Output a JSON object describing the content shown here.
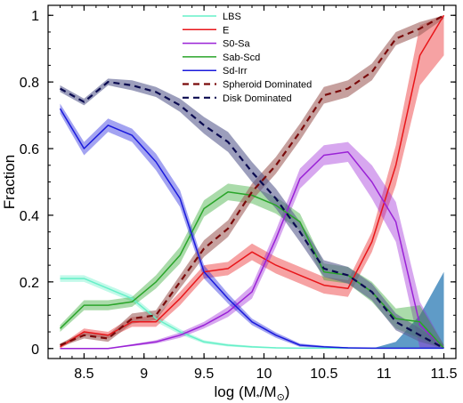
{
  "chart_data": {
    "type": "line",
    "xlabel_parts": [
      "log (M",
      "*",
      "/M",
      "⊙",
      ")"
    ],
    "ylabel": "Fraction",
    "xlim": [
      8.2,
      11.6
    ],
    "ylim": [
      -0.03,
      1.03
    ],
    "xticks": [
      "8.5",
      "9",
      "9.5",
      "10",
      "10.5",
      "11",
      "11.5"
    ],
    "xtick_values": [
      8.5,
      9.0,
      9.5,
      10.0,
      10.5,
      11.0,
      11.5
    ],
    "yticks": [
      "0",
      "0.2",
      "0.4",
      "0.6",
      "0.8",
      "1"
    ],
    "ytick_values": [
      0,
      0.2,
      0.4,
      0.6,
      0.8,
      1.0
    ],
    "legend_position": "top-center",
    "x": [
      8.3,
      8.5,
      8.7,
      8.9,
      9.1,
      9.3,
      9.5,
      9.7,
      9.9,
      10.1,
      10.3,
      10.5,
      10.7,
      10.9,
      11.1,
      11.3,
      11.5
    ],
    "series": [
      {
        "name": "LBS",
        "color": "#66f0c8",
        "dash": false,
        "values": [
          0.21,
          0.21,
          0.18,
          0.15,
          0.09,
          0.05,
          0.02,
          0.01,
          0.005,
          0.002,
          0.001,
          0.001,
          0.001,
          0.001,
          0.001,
          0.001,
          0.001
        ],
        "err": [
          0.01,
          0.01,
          0.01,
          0.01,
          0.01,
          0.008,
          0.005,
          0.004,
          0.003,
          0.002,
          0.001,
          0.001,
          0.001,
          0.001,
          0.001,
          0.001,
          0.001
        ]
      },
      {
        "name": "E",
        "color": "#e8161a",
        "dash": false,
        "values": [
          0.005,
          0.05,
          0.04,
          0.08,
          0.08,
          0.15,
          0.23,
          0.24,
          0.29,
          0.25,
          0.22,
          0.19,
          0.18,
          0.32,
          0.55,
          0.88,
          1.0
        ],
        "err": [
          0.005,
          0.01,
          0.01,
          0.015,
          0.015,
          0.02,
          0.02,
          0.02,
          0.025,
          0.025,
          0.025,
          0.025,
          0.025,
          0.03,
          0.06,
          0.09,
          0.12
        ]
      },
      {
        "name": "S0-Sa",
        "color": "#9a22d6",
        "dash": false,
        "values": [
          0.0,
          0.0,
          0.0,
          0.01,
          0.02,
          0.04,
          0.07,
          0.11,
          0.17,
          0.33,
          0.51,
          0.58,
          0.59,
          0.5,
          0.38,
          0.07,
          0.001
        ],
        "err": [
          0.001,
          0.001,
          0.002,
          0.003,
          0.005,
          0.008,
          0.01,
          0.015,
          0.02,
          0.025,
          0.03,
          0.03,
          0.03,
          0.05,
          0.06,
          0.07,
          0.01
        ]
      },
      {
        "name": "Sab-Scd",
        "color": "#2aa52a",
        "dash": false,
        "values": [
          0.06,
          0.13,
          0.13,
          0.14,
          0.2,
          0.28,
          0.42,
          0.47,
          0.46,
          0.43,
          0.38,
          0.23,
          0.22,
          0.17,
          0.09,
          0.08,
          0.001
        ],
        "err": [
          0.01,
          0.015,
          0.015,
          0.015,
          0.02,
          0.025,
          0.025,
          0.025,
          0.025,
          0.025,
          0.025,
          0.025,
          0.025,
          0.03,
          0.03,
          0.05,
          0.01
        ]
      },
      {
        "name": "Sd-Irr",
        "color": "#1a1adc",
        "dash": false,
        "values": [
          0.72,
          0.6,
          0.67,
          0.64,
          0.56,
          0.45,
          0.23,
          0.15,
          0.08,
          0.04,
          0.01,
          0.005,
          0.002,
          0.001,
          0.001,
          0.001,
          0.001
        ],
        "err": [
          0.015,
          0.02,
          0.02,
          0.02,
          0.025,
          0.025,
          0.02,
          0.015,
          0.01,
          0.008,
          0.005,
          0.003,
          0.002,
          0.001,
          0.001,
          0.001,
          0.001
        ]
      },
      {
        "name": "Spheroid Dominated",
        "color": "#7a0a0a",
        "fill": "#a0605e",
        "dash": true,
        "values": [
          0.01,
          0.04,
          0.03,
          0.09,
          0.1,
          0.2,
          0.3,
          0.36,
          0.47,
          0.55,
          0.65,
          0.76,
          0.78,
          0.83,
          0.93,
          0.96,
          1.0
        ],
        "err": [
          0.005,
          0.01,
          0.01,
          0.015,
          0.015,
          0.02,
          0.025,
          0.025,
          0.025,
          0.025,
          0.025,
          0.025,
          0.025,
          0.025,
          0.02,
          0.02,
          0.01
        ]
      },
      {
        "name": "Disk Dominated",
        "color": "#0a0a50",
        "fill": "#5a5e90",
        "dash": true,
        "values": [
          0.78,
          0.74,
          0.8,
          0.79,
          0.77,
          0.73,
          0.67,
          0.62,
          0.53,
          0.45,
          0.35,
          0.24,
          0.22,
          0.17,
          0.08,
          0.04,
          0.001
        ],
        "err": [
          0.01,
          0.01,
          0.01,
          0.015,
          0.015,
          0.02,
          0.025,
          0.03,
          0.03,
          0.03,
          0.03,
          0.025,
          0.025,
          0.025,
          0.025,
          0.02,
          0.01
        ]
      }
    ],
    "extra_bands": [
      {
        "color": "#2a7ab4",
        "x": [
          10.9,
          11.1,
          11.3,
          11.5
        ],
        "low": [
          0.0,
          0.0,
          0.0,
          0.0
        ],
        "high": [
          0.0,
          0.02,
          0.1,
          0.23
        ]
      }
    ]
  }
}
